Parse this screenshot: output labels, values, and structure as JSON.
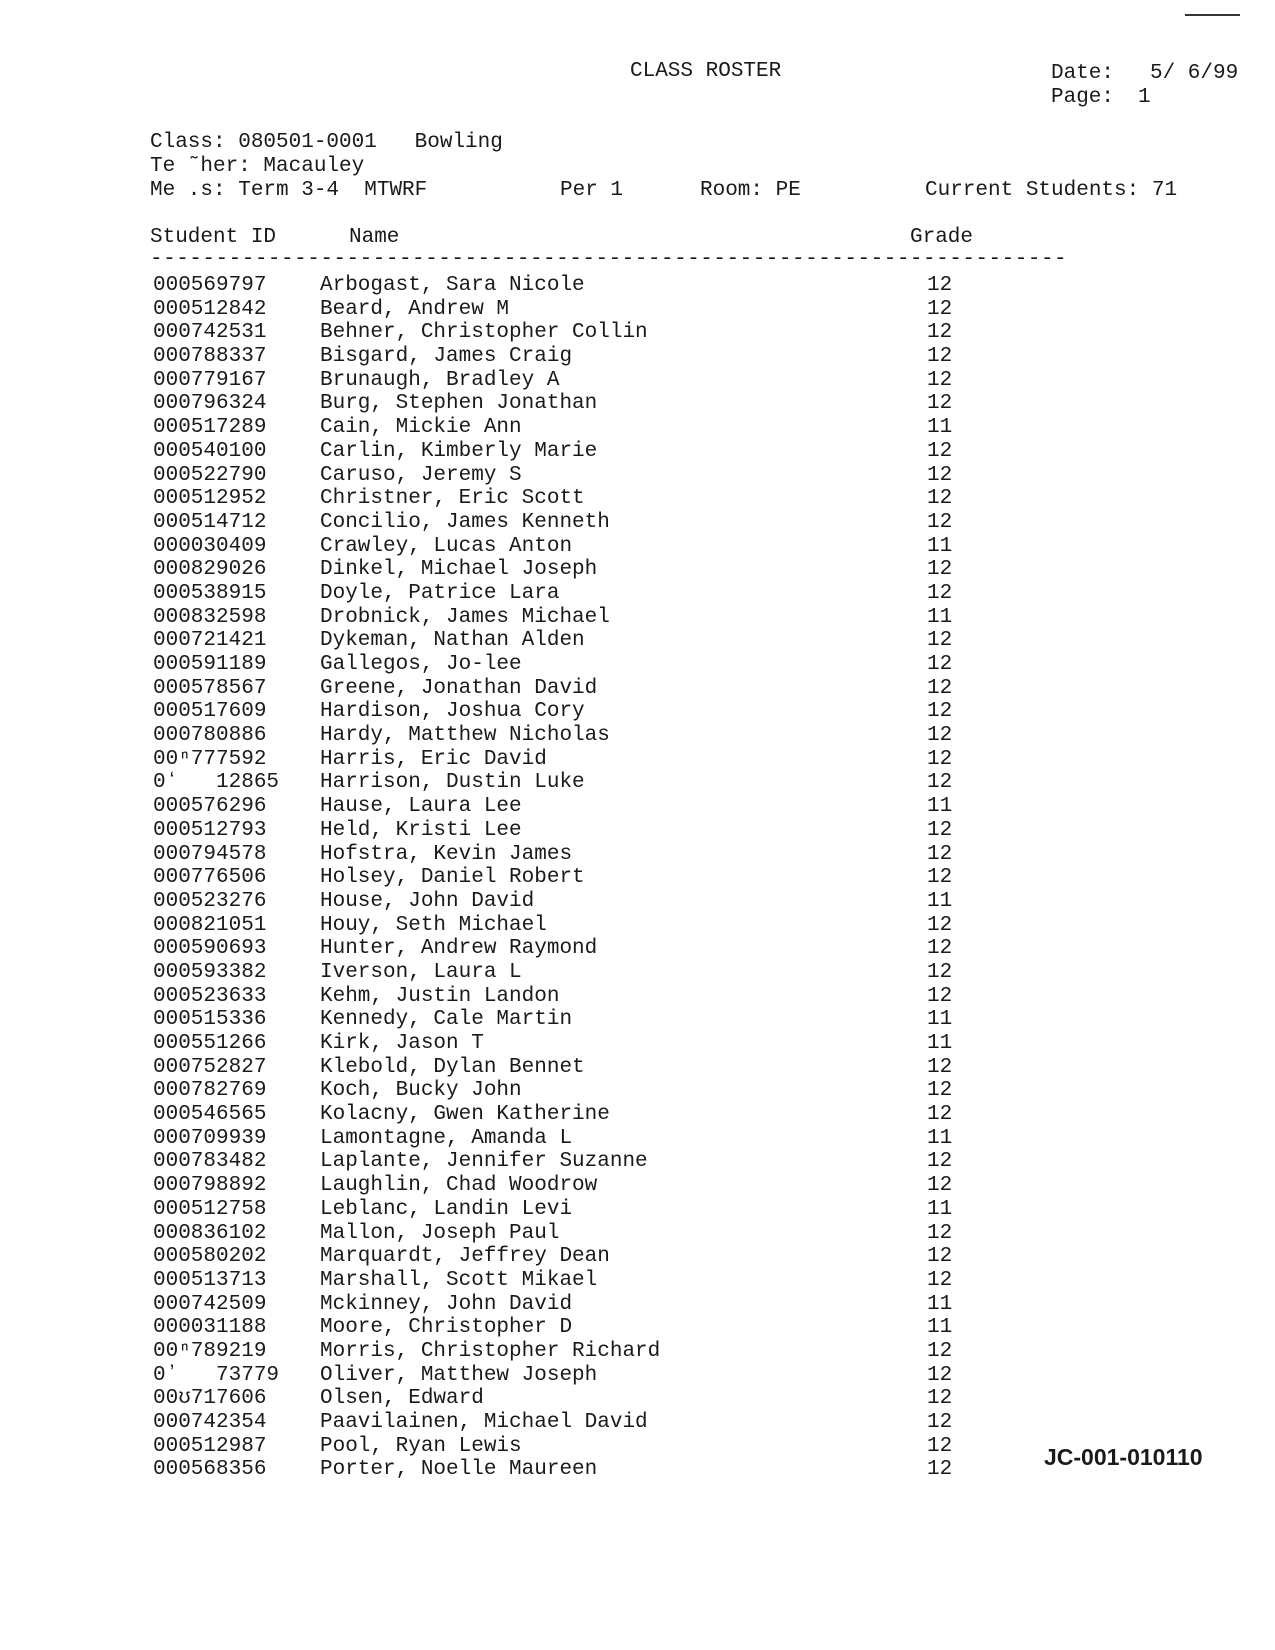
{
  "header": {
    "title": "CLASS ROSTER",
    "date_label": "Date:",
    "date": "5/ 6/99",
    "page_label": "Page:",
    "page": "1"
  },
  "class_info": {
    "class_line": "Class: 080501-0001   Bowling",
    "teacher_line": "Te ˜her: Macauley",
    "meets_line": "Me .s: Term 3-4  MTWRF",
    "period": "Per 1",
    "room": "Room: PE",
    "current_students": "Current Students: 71"
  },
  "columns": {
    "id": "Student ID",
    "name": "Name",
    "grade": "Grade"
  },
  "rule": "----------------------------------------------------------------------",
  "students": [
    {
      "id": "000569797",
      "name": "Arbogast, Sara Nicole",
      "grade": "12"
    },
    {
      "id": "000512842",
      "name": "Beard, Andrew M",
      "grade": "12"
    },
    {
      "id": "000742531",
      "name": "Behner, Christopher Collin",
      "grade": "12"
    },
    {
      "id": "000788337",
      "name": "Bisgard, James Craig",
      "grade": "12"
    },
    {
      "id": "000779167",
      "name": "Brunaugh, Bradley A",
      "grade": "12"
    },
    {
      "id": "000796324",
      "name": "Burg, Stephen Jonathan",
      "grade": "12"
    },
    {
      "id": "000517289",
      "name": "Cain, Mickie Ann",
      "grade": "11"
    },
    {
      "id": "000540100",
      "name": "Carlin, Kimberly Marie",
      "grade": "12"
    },
    {
      "id": "000522790",
      "name": "Caruso, Jeremy S",
      "grade": "12"
    },
    {
      "id": "000512952",
      "name": "Christner, Eric Scott",
      "grade": "12"
    },
    {
      "id": "000514712",
      "name": "Concilio, James Kenneth",
      "grade": "12"
    },
    {
      "id": "000030409",
      "name": "Crawley, Lucas Anton",
      "grade": "11"
    },
    {
      "id": "000829026",
      "name": "Dinkel, Michael Joseph",
      "grade": "12"
    },
    {
      "id": "000538915",
      "name": "Doyle, Patrice Lara",
      "grade": "12"
    },
    {
      "id": "000832598",
      "name": "Drobnick, James Michael",
      "grade": "11"
    },
    {
      "id": "000721421",
      "name": "Dykeman, Nathan Alden",
      "grade": "12"
    },
    {
      "id": "000591189",
      "name": "Gallegos, Jo-lee",
      "grade": "12"
    },
    {
      "id": "000578567",
      "name": "Greene, Jonathan David",
      "grade": "12"
    },
    {
      "id": "000517609",
      "name": "Hardison, Joshua Cory",
      "grade": "12"
    },
    {
      "id": "000780886",
      "name": "Hardy, Matthew Nicholas",
      "grade": "12"
    },
    {
      "id": "00ⁿ777592",
      "name": "Harris, Eric David",
      "grade": "12"
    },
    {
      "id": "0ʻ   12865",
      "name": "Harrison, Dustin Luke",
      "grade": "12"
    },
    {
      "id": "000576296",
      "name": "Hause, Laura Lee",
      "grade": "11"
    },
    {
      "id": "000512793",
      "name": "Held, Kristi Lee",
      "grade": "12"
    },
    {
      "id": "000794578",
      "name": "Hofstra, Kevin James",
      "grade": "12"
    },
    {
      "id": "000776506",
      "name": "Holsey, Daniel Robert",
      "grade": "12"
    },
    {
      "id": "000523276",
      "name": "House, John David",
      "grade": "11"
    },
    {
      "id": "000821051",
      "name": "Houy, Seth Michael",
      "grade": "12"
    },
    {
      "id": "000590693",
      "name": "Hunter, Andrew Raymond",
      "grade": "12"
    },
    {
      "id": "000593382",
      "name": "Iverson, Laura L",
      "grade": "12"
    },
    {
      "id": "000523633",
      "name": "Kehm, Justin Landon",
      "grade": "12"
    },
    {
      "id": "000515336",
      "name": "Kennedy, Cale Martin",
      "grade": "11"
    },
    {
      "id": "000551266",
      "name": "Kirk, Jason T",
      "grade": "11"
    },
    {
      "id": "000752827",
      "name": "Klebold, Dylan Bennet",
      "grade": "12"
    },
    {
      "id": "000782769",
      "name": "Koch, Bucky John",
      "grade": "12"
    },
    {
      "id": "000546565",
      "name": "Kolacny, Gwen Katherine",
      "grade": "12"
    },
    {
      "id": "000709939",
      "name": "Lamontagne, Amanda L",
      "grade": "11"
    },
    {
      "id": "000783482",
      "name": "Laplante, Jennifer Suzanne",
      "grade": "12"
    },
    {
      "id": "000798892",
      "name": "Laughlin, Chad Woodrow",
      "grade": "12"
    },
    {
      "id": "000512758",
      "name": "Leblanc, Landin Levi",
      "grade": "11"
    },
    {
      "id": "000836102",
      "name": "Mallon, Joseph Paul",
      "grade": "12"
    },
    {
      "id": "000580202",
      "name": "Marquardt, Jeffrey Dean",
      "grade": "12"
    },
    {
      "id": "000513713",
      "name": "Marshall, Scott Mikael",
      "grade": "12"
    },
    {
      "id": "000742509",
      "name": "Mckinney, John David",
      "grade": "11"
    },
    {
      "id": "000031188",
      "name": "Moore, Christopher D",
      "grade": "11"
    },
    {
      "id": "00ⁿ789219",
      "name": "Morris, Christopher Richard",
      "grade": "12"
    },
    {
      "id": "0ʼ   73779",
      "name": "Oliver, Matthew Joseph",
      "grade": "12"
    },
    {
      "id": "00ʊ717606",
      "name": "Olsen, Edward",
      "grade": "12"
    },
    {
      "id": "000742354",
      "name": "Paavilainen, Michael David",
      "grade": "12"
    },
    {
      "id": "000512987",
      "name": "Pool, Ryan Lewis",
      "grade": "12"
    },
    {
      "id": "000568356",
      "name": "Porter, Noelle Maureen",
      "grade": "12"
    }
  ],
  "stamp": "JC-001-010110"
}
